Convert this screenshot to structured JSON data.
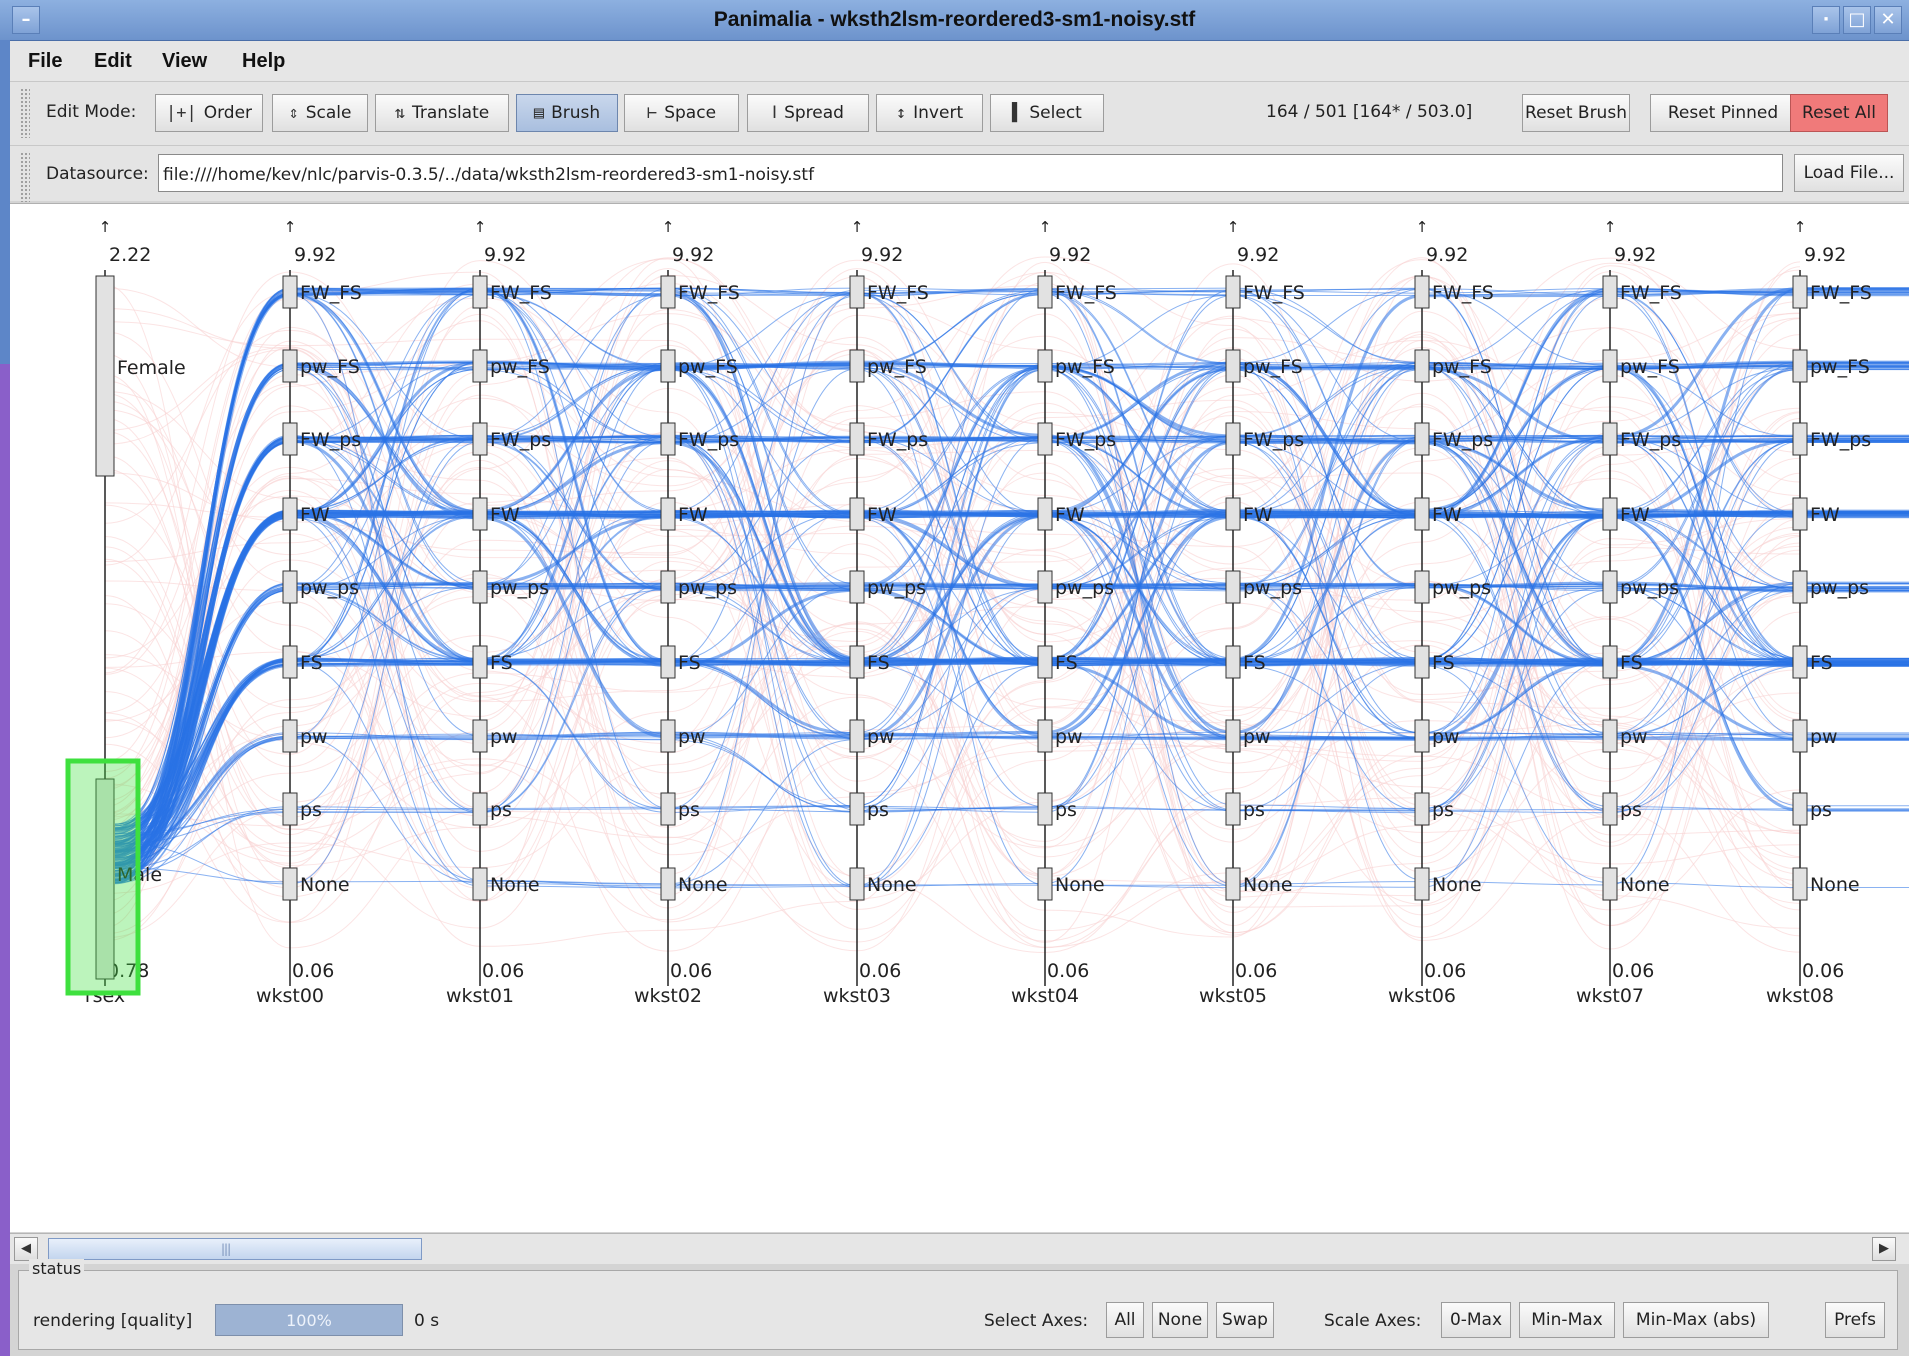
{
  "window": {
    "title": "Panimalia - wksth2lsm-reordered3-sm1-noisy.stf"
  },
  "menu": [
    "File",
    "Edit",
    "View",
    "Help"
  ],
  "toolbar": {
    "edit_mode_label": "Edit Mode:",
    "modes": [
      {
        "label": "Order",
        "icon": "order-icon",
        "glyph": "|+|"
      },
      {
        "label": "Scale",
        "icon": "scale-icon",
        "glyph": "⇕"
      },
      {
        "label": "Translate",
        "icon": "translate-icon",
        "glyph": "⇅"
      },
      {
        "label": "Brush",
        "icon": "brush-icon",
        "glyph": "▤"
      },
      {
        "label": "Space",
        "icon": "space-icon",
        "glyph": "⊢"
      },
      {
        "label": "Spread",
        "icon": "spread-icon",
        "glyph": "Ⅰ"
      },
      {
        "label": "Invert",
        "icon": "invert-icon",
        "glyph": "↕"
      },
      {
        "label": "Select",
        "icon": "select-icon",
        "glyph": "▌"
      }
    ],
    "active_mode": "Brush",
    "count_text": "164 / 501  [164* / 503.0]",
    "reset_brush": "Reset Brush",
    "reset_pinned": "Reset Pinned",
    "reset_all": "Reset All"
  },
  "datasource": {
    "label": "Datasource:",
    "value": "file:////home/kev/nlc/parvis-0.3.5/../data/wksth2lsm-reordered3-sm1-noisy.stf",
    "load_button": "Load File..."
  },
  "chart_data": {
    "type": "parallel-coordinates",
    "axes": [
      {
        "name": "rsex",
        "max": "2.22",
        "min": "0.78",
        "categories": [
          "Female",
          "Male"
        ]
      },
      {
        "name": "wkst00",
        "max": "9.92",
        "min": "0.06"
      },
      {
        "name": "wkst01",
        "max": "9.92",
        "min": "0.06"
      },
      {
        "name": "wkst02",
        "max": "9.92",
        "min": "0.06"
      },
      {
        "name": "wkst03",
        "max": "9.92",
        "min": "0.06"
      },
      {
        "name": "wkst04",
        "max": "9.92",
        "min": "0.06"
      },
      {
        "name": "wkst05",
        "max": "9.92",
        "min": "0.06"
      },
      {
        "name": "wkst06",
        "max": "9.92",
        "min": "0.06"
      },
      {
        "name": "wkst07",
        "max": "9.92",
        "min": "0.06"
      },
      {
        "name": "wkst08",
        "max": "9.92",
        "min": "0.06"
      }
    ],
    "category_labels": [
      "FW_FS",
      "pw_FS",
      "FW_ps",
      "FW",
      "pw_ps",
      "FS",
      "pw",
      "ps",
      "None"
    ],
    "brush": {
      "axis": "rsex",
      "selected": "Male"
    },
    "colors": {
      "selected": "#2a72e6",
      "unselected": "#f8d2d2",
      "brush": "#3ee03e"
    }
  },
  "status": {
    "legend": "status",
    "rendering_label": "rendering [quality]",
    "progress_text": "100%",
    "progress_value": 1.0,
    "time_text": "0 s",
    "select_axes_label": "Select Axes:",
    "select_axes_buttons": [
      "All",
      "None",
      "Swap"
    ],
    "scale_axes_label": "Scale Axes:",
    "scale_axes_buttons": [
      "0-Max",
      "Min-Max",
      "Min-Max (abs)"
    ],
    "prefs": "Prefs"
  }
}
